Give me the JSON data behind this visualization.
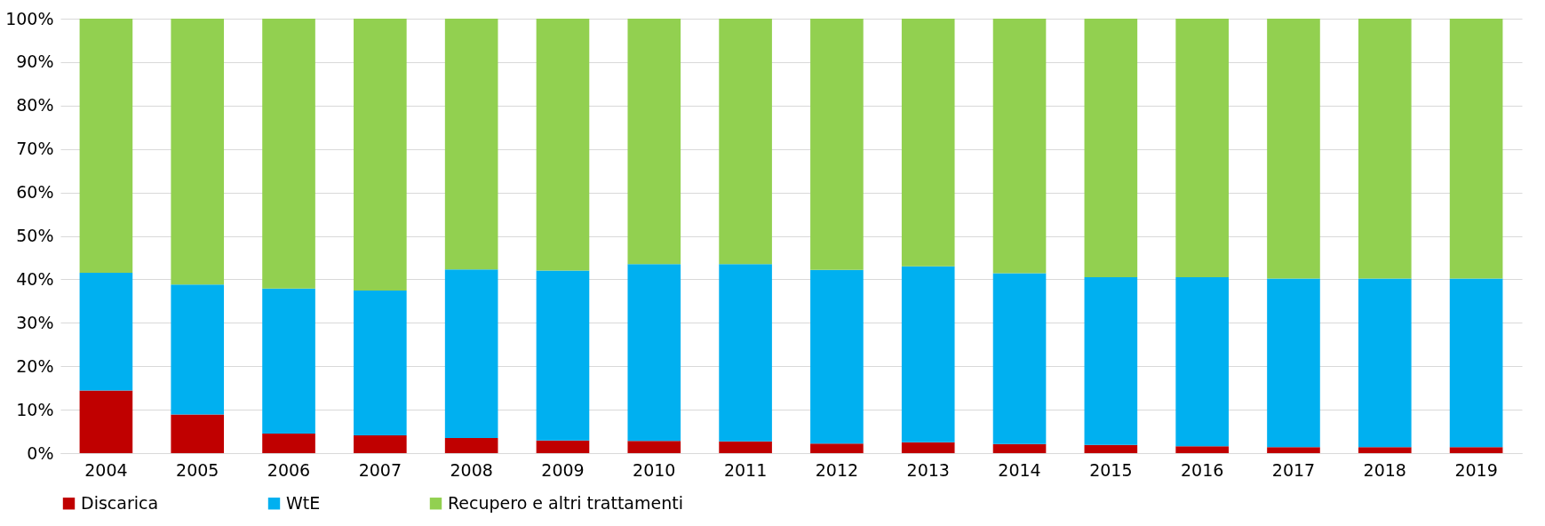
{
  "chart_data": {
    "type": "bar",
    "stacked": true,
    "categories": [
      "2004",
      "2005",
      "2006",
      "2007",
      "2008",
      "2009",
      "2010",
      "2011",
      "2012",
      "2013",
      "2014",
      "2015",
      "2016",
      "2017",
      "2018",
      "2019"
    ],
    "series": [
      {
        "name": "Discarica",
        "color": "#c00000",
        "values": [
          14.4,
          8.9,
          4.5,
          4.1,
          3.5,
          2.9,
          2.8,
          2.7,
          2.2,
          2.5,
          2.1,
          1.9,
          1.6,
          1.4,
          1.4,
          1.4
        ]
      },
      {
        "name": "WtE",
        "color": "#00b0f0",
        "values": [
          27.1,
          29.9,
          33.4,
          33.3,
          38.8,
          39.1,
          40.7,
          40.8,
          40.0,
          40.5,
          39.3,
          38.6,
          38.9,
          38.8,
          38.8,
          38.8
        ]
      },
      {
        "name": "Recupero e altri trattamenti",
        "color": "#92d050",
        "values": [
          58.5,
          61.2,
          62.1,
          62.6,
          57.7,
          58.0,
          56.5,
          56.5,
          57.8,
          57.0,
          58.6,
          59.5,
          59.5,
          59.8,
          59.8,
          59.8
        ]
      }
    ],
    "ylim": [
      0,
      100
    ],
    "yticks": [
      {
        "value": 0,
        "label": "0%"
      },
      {
        "value": 10,
        "label": "10%"
      },
      {
        "value": 20,
        "label": "20%"
      },
      {
        "value": 30,
        "label": "30%"
      },
      {
        "value": 40,
        "label": "40%"
      },
      {
        "value": 50,
        "label": "50%"
      },
      {
        "value": 60,
        "label": "60%"
      },
      {
        "value": 70,
        "label": "70%"
      },
      {
        "value": 80,
        "label": "80%"
      },
      {
        "value": 90,
        "label": "90%"
      },
      {
        "value": 100,
        "label": "100%"
      }
    ],
    "grid": "y",
    "legend": "bottom"
  }
}
